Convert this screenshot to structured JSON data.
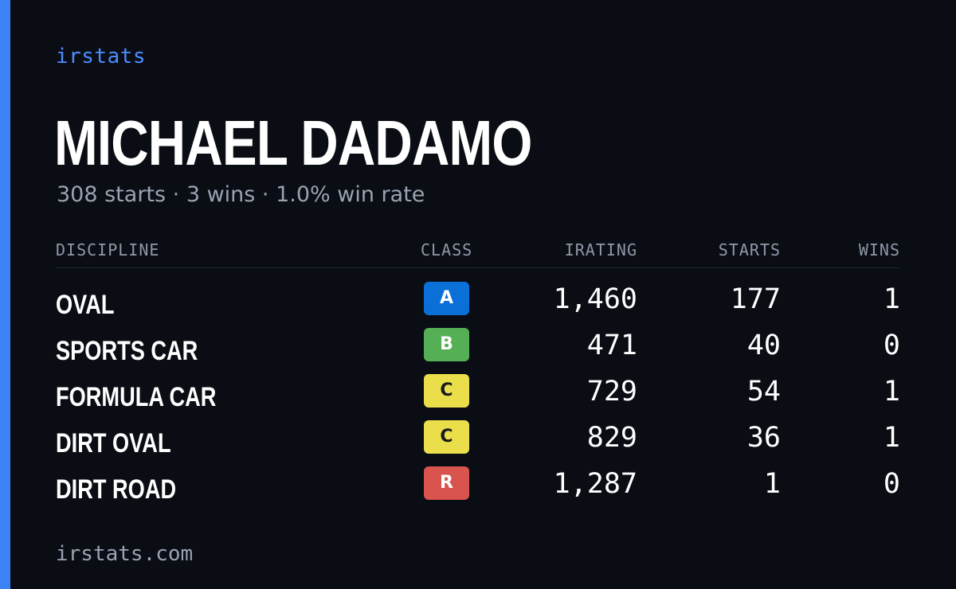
{
  "brand": "irstats",
  "driver": {
    "name": "MICHAEL DADAMO",
    "summary": "308 starts · 3 wins · 1.0% win rate"
  },
  "table": {
    "headers": {
      "discipline": "DISCIPLINE",
      "class": "CLASS",
      "irating": "IRATING",
      "starts": "STARTS",
      "wins": "WINS"
    },
    "rows": [
      {
        "discipline": "OVAL",
        "class": "A",
        "class_bg": "#0b6fd8",
        "class_fg": "#ffffff",
        "irating": "1,460",
        "starts": "177",
        "wins": "1"
      },
      {
        "discipline": "SPORTS CAR",
        "class": "B",
        "class_bg": "#55b055",
        "class_fg": "#ffffff",
        "irating": "471",
        "starts": "40",
        "wins": "0"
      },
      {
        "discipline": "FORMULA CAR",
        "class": "C",
        "class_bg": "#eadf4b",
        "class_fg": "#1a1a1a",
        "irating": "729",
        "starts": "54",
        "wins": "1"
      },
      {
        "discipline": "DIRT OVAL",
        "class": "C",
        "class_bg": "#eadf4b",
        "class_fg": "#1a1a1a",
        "irating": "829",
        "starts": "36",
        "wins": "1"
      },
      {
        "discipline": "DIRT ROAD",
        "class": "R",
        "class_bg": "#d9534f",
        "class_fg": "#ffffff",
        "irating": "1,287",
        "starts": "1",
        "wins": "0"
      }
    ]
  },
  "footer": "irstats.com",
  "colors": {
    "background": "#0a0d14",
    "accent": "#3b82f6",
    "brand_text": "#4c8dff"
  }
}
